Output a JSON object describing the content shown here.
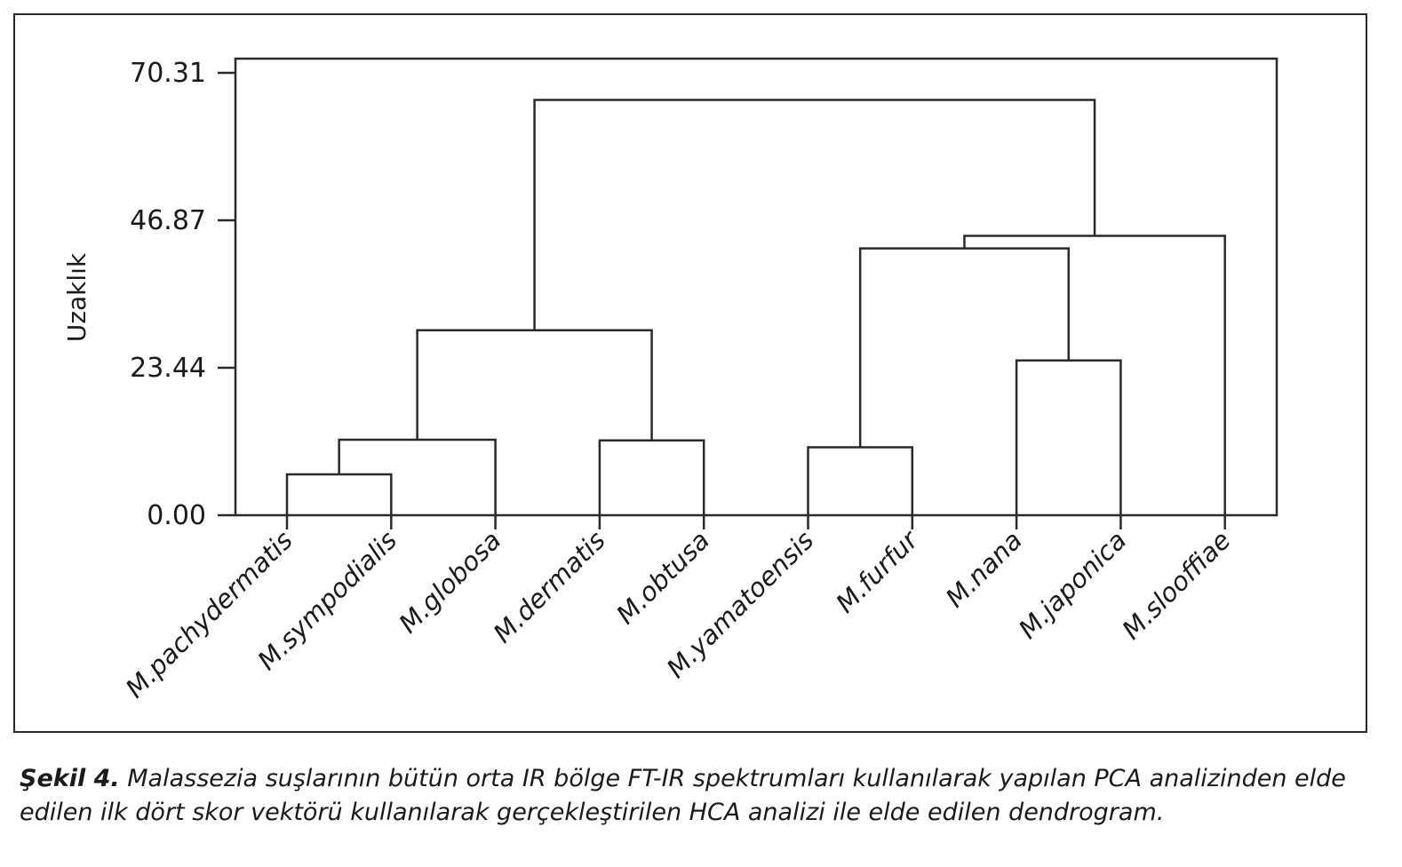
{
  "chart_data": {
    "type": "dendrogram",
    "ylabel": "Uzaklık",
    "ylim": [
      0,
      70.31
    ],
    "yticks": [
      "0.00",
      "23.44",
      "46.87",
      "70.31"
    ],
    "ytick_values": [
      0,
      23.44,
      46.87,
      70.31
    ],
    "leaves": [
      "M.pachydermatis",
      "M.sympodialis",
      "M.globosa",
      "M.dermatis",
      "M.obtusa",
      "M.yamatoensis",
      "M.furfur",
      "M.nana",
      "M.japonica",
      "M.slooffiae"
    ],
    "merges": [
      {
        "left": 0,
        "right": 1,
        "height": 6.5
      },
      {
        "left": 10,
        "right": 2,
        "height": 12.0
      },
      {
        "left": 3,
        "right": 4,
        "height": 11.9
      },
      {
        "left": 11,
        "right": 12,
        "height": 29.4
      },
      {
        "left": 5,
        "right": 6,
        "height": 10.8
      },
      {
        "left": 7,
        "right": 8,
        "height": 24.6
      },
      {
        "left": 14,
        "right": 15,
        "height": 42.4
      },
      {
        "left": 16,
        "right": 9,
        "height": 44.4
      },
      {
        "left": 13,
        "right": 17,
        "height": 66.0
      }
    ]
  },
  "caption": {
    "lead": "Şekil 4.",
    "text": " Malassezia suşlarının bütün orta IR bölge FT-IR spektrumları kullanılarak yapılan PCA analizinden elde edilen ilk dört skor vektörü kullanılarak gerçekleştirilen HCA analizi ile elde edilen dendrogram."
  }
}
